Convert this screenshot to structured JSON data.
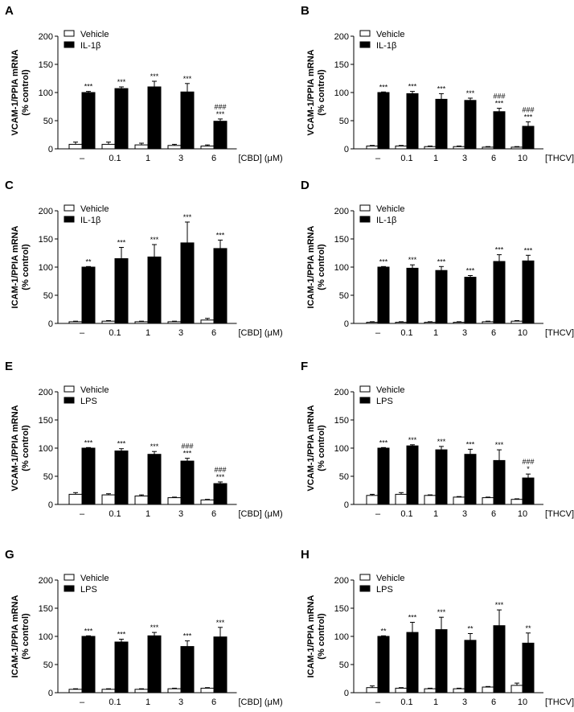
{
  "chart_data": [
    {
      "panel": "A",
      "type": "bar",
      "ylabel": [
        "VCAM-1/PPIA mRNA",
        "(% control)"
      ],
      "ylim": [
        0,
        200
      ],
      "yticks": [
        0,
        50,
        100,
        150,
        200
      ],
      "categories": [
        "–",
        "0.1",
        "1",
        "3",
        "6"
      ],
      "xunit": "[CBD] (μM)",
      "series": [
        {
          "name": "Vehicle",
          "fill": "#ffffff",
          "values": [
            8,
            8,
            7,
            6,
            5
          ],
          "errors": [
            4,
            4,
            3,
            2,
            2
          ],
          "sig_top": [
            "",
            "",
            "",
            "",
            ""
          ],
          "sig_mid": [
            "",
            "",
            "",
            "",
            ""
          ]
        },
        {
          "name": "IL-1β",
          "fill": "#000000",
          "values": [
            100,
            107,
            110,
            101,
            49
          ],
          "errors": [
            2,
            3,
            10,
            15,
            4
          ],
          "sig_top": [
            "***",
            "***",
            "***",
            "***",
            "###"
          ],
          "sig_mid": [
            "",
            "",
            "",
            "",
            "***"
          ]
        }
      ]
    },
    {
      "panel": "B",
      "type": "bar",
      "ylabel": [
        "VCAM-1/PPIA mRNA",
        "(% control)"
      ],
      "ylim": [
        0,
        200
      ],
      "yticks": [
        0,
        50,
        100,
        150,
        200
      ],
      "categories": [
        "–",
        "0.1",
        "1",
        "3",
        "6",
        "10"
      ],
      "xunit": "[THCV] (μM)",
      "series": [
        {
          "name": "Vehicle",
          "fill": "#ffffff",
          "values": [
            5,
            5,
            4,
            4,
            3,
            3
          ],
          "errors": [
            1,
            1,
            1,
            1,
            1,
            1
          ],
          "sig_top": [
            "",
            "",
            "",
            "",
            "",
            ""
          ],
          "sig_mid": [
            "",
            "",
            "",
            "",
            "",
            ""
          ]
        },
        {
          "name": "IL-1β",
          "fill": "#000000",
          "values": [
            100,
            98,
            88,
            86,
            66,
            40
          ],
          "errors": [
            1,
            4,
            10,
            4,
            6,
            8
          ],
          "sig_top": [
            "***",
            "***",
            "***",
            "***",
            "###",
            "###"
          ],
          "sig_mid": [
            "",
            "",
            "",
            "",
            "***",
            "***"
          ]
        }
      ]
    },
    {
      "panel": "C",
      "type": "bar",
      "ylabel": [
        "ICAM-1/PPIA mRNA",
        "(% control)"
      ],
      "ylim": [
        0,
        200
      ],
      "yticks": [
        0,
        50,
        100,
        150,
        200
      ],
      "categories": [
        "–",
        "0.1",
        "1",
        "3",
        "6"
      ],
      "xunit": "[CBD] (μM)",
      "series": [
        {
          "name": "Vehicle",
          "fill": "#ffffff",
          "values": [
            3,
            4,
            3,
            3,
            6
          ],
          "errors": [
            1,
            1,
            1,
            1,
            3
          ],
          "sig_top": [
            "",
            "",
            "",
            "",
            ""
          ],
          "sig_mid": [
            "",
            "",
            "",
            "",
            ""
          ]
        },
        {
          "name": "IL-1β",
          "fill": "#000000",
          "values": [
            100,
            115,
            118,
            143,
            133
          ],
          "errors": [
            1,
            20,
            22,
            37,
            15
          ],
          "sig_top": [
            "**",
            "***",
            "***",
            "***",
            "***"
          ],
          "sig_mid": [
            "",
            "",
            "",
            "",
            ""
          ]
        }
      ]
    },
    {
      "panel": "D",
      "type": "bar",
      "ylabel": [
        "ICAM-1/PPIA mRNA",
        "(% control)"
      ],
      "ylim": [
        0,
        200
      ],
      "yticks": [
        0,
        50,
        100,
        150,
        200
      ],
      "categories": [
        "–",
        "0.1",
        "1",
        "3",
        "6",
        "10"
      ],
      "xunit": "[THCV] (μM)",
      "series": [
        {
          "name": "Vehicle",
          "fill": "#ffffff",
          "values": [
            2,
            2,
            2,
            2,
            3,
            4
          ],
          "errors": [
            1,
            1,
            1,
            1,
            1,
            1
          ],
          "sig_top": [
            "",
            "",
            "",
            "",
            "",
            ""
          ],
          "sig_mid": [
            "",
            "",
            "",
            "",
            "",
            ""
          ]
        },
        {
          "name": "IL-1β",
          "fill": "#000000",
          "values": [
            100,
            98,
            94,
            82,
            110,
            111
          ],
          "errors": [
            1,
            6,
            7,
            3,
            12,
            10
          ],
          "sig_top": [
            "***",
            "***",
            "***",
            "***",
            "***",
            "***"
          ],
          "sig_mid": [
            "",
            "",
            "",
            "",
            "",
            ""
          ]
        }
      ]
    },
    {
      "panel": "E",
      "type": "bar",
      "ylabel": [
        "VCAM-1/PPIA mRNA",
        "(% control)"
      ],
      "ylim": [
        0,
        200
      ],
      "yticks": [
        0,
        50,
        100,
        150,
        200
      ],
      "categories": [
        "–",
        "0.1",
        "1",
        "3",
        "6"
      ],
      "xunit": "[CBD] (μM)",
      "series": [
        {
          "name": "Vehicle",
          "fill": "#ffffff",
          "values": [
            18,
            17,
            15,
            12,
            8
          ],
          "errors": [
            3,
            2,
            2,
            1,
            1
          ],
          "sig_top": [
            "",
            "",
            "",
            "",
            ""
          ],
          "sig_mid": [
            "",
            "",
            "",
            "",
            ""
          ]
        },
        {
          "name": "LPS",
          "fill": "#000000",
          "values": [
            100,
            95,
            89,
            77,
            37
          ],
          "errors": [
            1,
            4,
            5,
            5,
            3
          ],
          "sig_top": [
            "***",
            "***",
            "***",
            "###",
            "###"
          ],
          "sig_mid": [
            "",
            "",
            "",
            "***",
            "***"
          ]
        }
      ]
    },
    {
      "panel": "F",
      "type": "bar",
      "ylabel": [
        "VCAM-1/PPIA mRNA",
        "(% control)"
      ],
      "ylim": [
        0,
        200
      ],
      "yticks": [
        0,
        50,
        100,
        150,
        200
      ],
      "categories": [
        "–",
        "0.1",
        "1",
        "3",
        "6",
        "10"
      ],
      "xunit": "[THCV] (μM)",
      "series": [
        {
          "name": "Vehicle",
          "fill": "#ffffff",
          "values": [
            16,
            18,
            16,
            13,
            12,
            9
          ],
          "errors": [
            2,
            3,
            1,
            1,
            1,
            1
          ],
          "sig_top": [
            "",
            "",
            "",
            "",
            "",
            ""
          ],
          "sig_mid": [
            "",
            "",
            "",
            "",
            "",
            ""
          ]
        },
        {
          "name": "LPS",
          "fill": "#000000",
          "values": [
            100,
            104,
            97,
            89,
            78,
            47
          ],
          "errors": [
            1,
            2,
            6,
            9,
            19,
            7
          ],
          "sig_top": [
            "***",
            "***",
            "***",
            "***",
            "***",
            "###"
          ],
          "sig_mid": [
            "",
            "",
            "",
            "",
            "",
            "*"
          ]
        }
      ]
    },
    {
      "panel": "G",
      "type": "bar",
      "ylabel": [
        "ICAM-1/PPIA mRNA",
        "(% control)"
      ],
      "ylim": [
        0,
        200
      ],
      "yticks": [
        0,
        50,
        100,
        150,
        200
      ],
      "categories": [
        "–",
        "0.1",
        "1",
        "3",
        "6"
      ],
      "xunit": "[CBD] (μM)",
      "series": [
        {
          "name": "Vehicle",
          "fill": "#ffffff",
          "values": [
            6,
            6,
            6,
            7,
            8
          ],
          "errors": [
            1,
            1,
            1,
            1,
            1
          ],
          "sig_top": [
            "",
            "",
            "",
            "",
            ""
          ],
          "sig_mid": [
            "",
            "",
            "",
            "",
            ""
          ]
        },
        {
          "name": "LPS",
          "fill": "#000000",
          "values": [
            100,
            90,
            101,
            82,
            99
          ],
          "errors": [
            1,
            5,
            6,
            10,
            17
          ],
          "sig_top": [
            "***",
            "***",
            "***",
            "***",
            "***"
          ],
          "sig_mid": [
            "",
            "",
            "",
            "",
            ""
          ]
        }
      ]
    },
    {
      "panel": "H",
      "type": "bar",
      "ylabel": [
        "ICAM-1/PPIA mRNA",
        "(% control)"
      ],
      "ylim": [
        0,
        200
      ],
      "yticks": [
        0,
        50,
        100,
        150,
        200
      ],
      "categories": [
        "–",
        "0.1",
        "1",
        "3",
        "6",
        "10"
      ],
      "xunit": "[THCV] (μM)",
      "series": [
        {
          "name": "Vehicle",
          "fill": "#ffffff",
          "values": [
            9,
            8,
            7,
            7,
            10,
            13
          ],
          "errors": [
            3,
            1,
            1,
            1,
            1,
            4
          ],
          "sig_top": [
            "",
            "",
            "",
            "",
            "",
            ""
          ],
          "sig_mid": [
            "",
            "",
            "",
            "",
            "",
            ""
          ]
        },
        {
          "name": "LPS",
          "fill": "#000000",
          "values": [
            100,
            107,
            112,
            93,
            119,
            88
          ],
          "errors": [
            1,
            18,
            22,
            12,
            28,
            18
          ],
          "sig_top": [
            "**",
            "***",
            "***",
            "**",
            "***",
            "**"
          ],
          "sig_mid": [
            "",
            "",
            "",
            "",
            "",
            ""
          ]
        }
      ]
    }
  ]
}
